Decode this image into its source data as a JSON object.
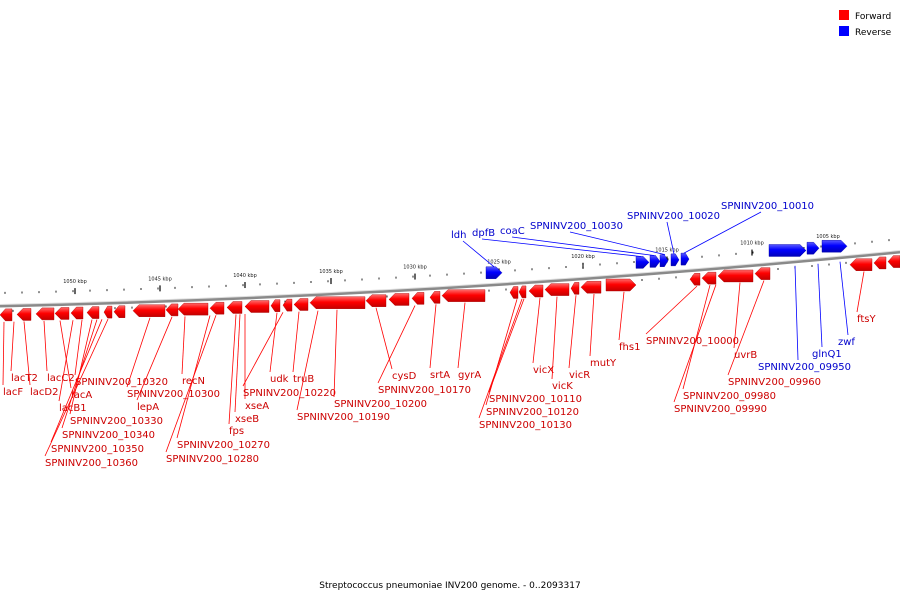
{
  "caption": "Streptococcus pneumoniae INV200 genome. - 0..2093317",
  "legend": [
    {
      "label": "Forward",
      "color": "#ff0000"
    },
    {
      "label": "Reverse",
      "color": "#0000ff"
    }
  ],
  "colors": {
    "forward": "#ff0000",
    "forward_label": "#cc0000",
    "reverse": "#0000ff",
    "reverse_label": "#0000cc",
    "backbone": "#888888"
  },
  "scale_ticks": [
    "1005 kbp",
    "1010 kbp",
    "1015 kbp",
    "1020 kbp",
    "1025 kbp",
    "1030 kbp",
    "1035 kbp",
    "1040 kbp",
    "1045 kbp",
    "1050 kbp"
  ],
  "forward_genes": [
    "lacT2",
    "lacF",
    "lacD2",
    "lacC2",
    "lacA",
    "lacB1",
    "SPNINV200_10320",
    "SPNINV200_10330",
    "SPNINV200_10340",
    "SPNINV200_10350",
    "SPNINV200_10360",
    "SPNINV200_10300",
    "lepA",
    "recN",
    "fps",
    "SPNINV200_10270",
    "SPNINV200_10280",
    "xseB",
    "xseA",
    "udk",
    "SPNINV200_10220",
    "truB",
    "SPNINV200_10200",
    "SPNINV200_10190",
    "cysD",
    "SPNINV200_10170",
    "srtA",
    "gyrA",
    "vicX",
    "SPNINV200_10110",
    "SPNINV200_10120",
    "SPNINV200_10130",
    "vicK",
    "vicR",
    "mutY",
    "fhs1",
    "SPNINV200_10000",
    "SPNINV200_09980",
    "SPNINV200_09990",
    "SPNINV200_09960",
    "uvrB",
    "ftsY"
  ],
  "reverse_genes": [
    "ldh",
    "dpfB",
    "coaC",
    "SPNINV200_10030",
    "SPNINV200_10020",
    "SPNINV200_10010",
    "SPNINV200_09950",
    "glnQ1",
    "zwf"
  ]
}
